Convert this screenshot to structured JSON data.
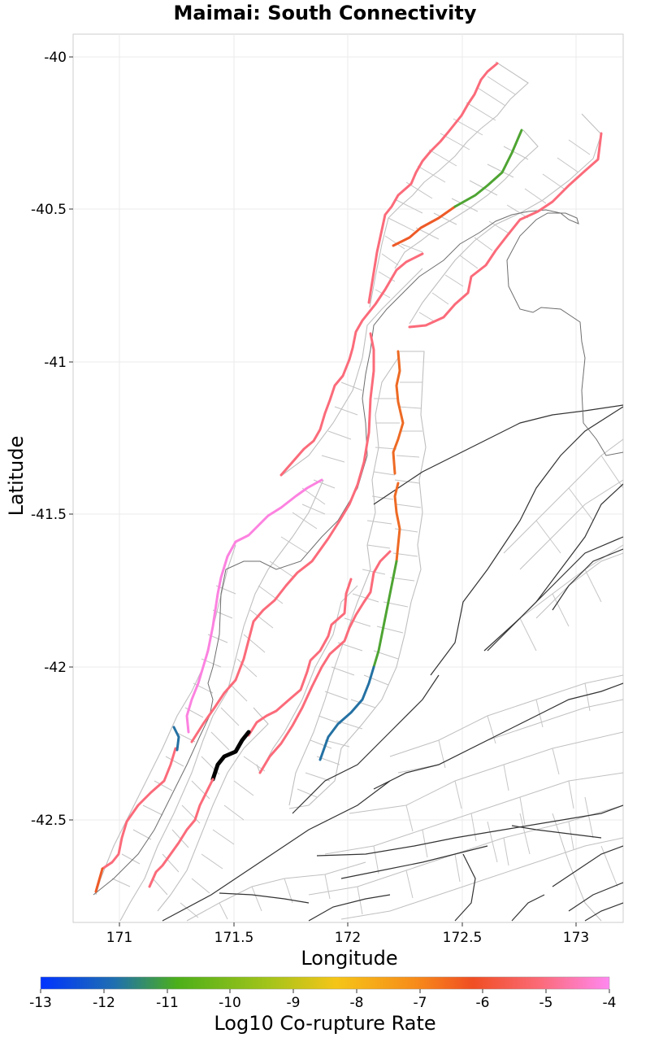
{
  "title": "Maimai: South Connectivity",
  "map": {
    "x_axis": {
      "label": "Longitude",
      "ticks": [
        "171",
        "171.5",
        "172",
        "172.5",
        "173"
      ]
    },
    "y_axis": {
      "label": "Latitude",
      "ticks": [
        "-40",
        "-40.5",
        "-41",
        "-41.5",
        "-42",
        "-42.5"
      ]
    },
    "extent": {
      "lon": [
        170.8,
        173.2
      ],
      "lat": [
        -42.85,
        -39.92
      ]
    },
    "grid": true
  },
  "colorbar": {
    "label": "Log10 Co-rupture Rate",
    "ticks": [
      "-13",
      "-12",
      "-11",
      "-10",
      "-9",
      "-8",
      "-7",
      "-6",
      "-5",
      "-4"
    ],
    "range": [
      -13,
      -4
    ],
    "colors": [
      "#0033ff",
      "#1f77b4",
      "#4caf1a",
      "#9cc41a",
      "#f5c518",
      "#f78b1a",
      "#f04e23",
      "#fb6b7a",
      "#fc82e0",
      "#ff88f0"
    ]
  },
  "colors": {
    "high_rate": "#fb6b7a",
    "very_high_rate": "#fc82e0",
    "mid_rate": "#ee6a24",
    "low_rate": "#4ea432",
    "lower_rate": "#2471a3",
    "source_fault": "#000000",
    "background_fault": "#333333",
    "fault_plane_outline": "#bfbfbf",
    "coastline": "#666666"
  }
}
